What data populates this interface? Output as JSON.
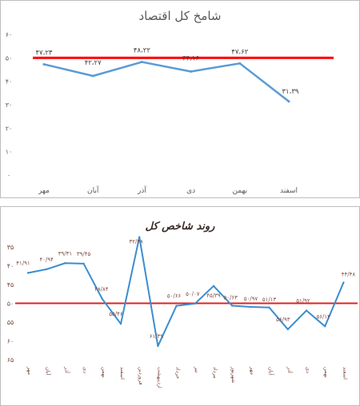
{
  "chart_data": [
    {
      "type": "line",
      "title": "شامخ کل اقتصاد",
      "categories": [
        "مهر",
        "آبان",
        "آذر",
        "دی",
        "بهمن",
        "اسفند"
      ],
      "series": [
        {
          "values": [
            47.23,
            42.27,
            48.22,
            44.16,
            47.62,
            31.39
          ],
          "labels": [
            "۴۷،۲۳",
            "۴۲،۲۷",
            "۴۸،۲۲",
            "۴۴،۱۶",
            "۴۷،۶۲",
            "۳۱،۳۹"
          ],
          "color": "#5b9bd5"
        }
      ],
      "threshold": {
        "value": 50,
        "color": "#ff0000"
      },
      "ylim": [
        0,
        60
      ],
      "yticks": [
        0,
        10,
        20,
        30,
        40,
        50,
        60
      ],
      "yticklabels": [
        "۰",
        "۱۰",
        "۲۰",
        "۳۰",
        "۴۰",
        "۵۰",
        "۶۰"
      ],
      "grid": false,
      "xlabel": "",
      "ylabel": ""
    },
    {
      "type": "line",
      "title": "روند شاخص کل",
      "categories": [
        "مهر",
        "آبان",
        "آذر",
        "دی",
        "بهمن",
        "اسفند",
        "فروردین",
        "اردیبهشت",
        "خرداد",
        "تیر",
        "مرداد",
        "شهریور",
        "مهر",
        "آبان",
        "آذر",
        "دی",
        "بهمن",
        "اسفند"
      ],
      "series": [
        {
          "values": [
            41.91,
            40.94,
            39.31,
            39.45,
            48.84,
            55.46,
            32.38,
            61.39,
            50.66,
            50.07,
            45.39,
            50.63,
            50.97,
            51.13,
            56.93,
            51.92,
            56.13,
            44.48
          ],
          "labels": [
            "۴۱/۹۱",
            "۴۰/۹۴",
            "۳۹/۳۱",
            "۳۹/۴۵",
            "۴۸/۸۴",
            "۵۵/۴۶",
            "۳۲/۳۸",
            "۶۱/۳۹",
            "۵۰/۶۶",
            "۵۰/۰۷",
            "۴۵/۳۹",
            "۵۰/۶۳",
            "۵۰/۹۷",
            "۵۱/۱۳",
            "۵۶/۹۳",
            "۵۱/۹۲",
            "۵۶/۱۳",
            "۴۴/۴۸"
          ],
          "color": "#3c8dcf"
        }
      ],
      "threshold": {
        "value": 50,
        "color": "#e02020"
      },
      "ylim": [
        35,
        65
      ],
      "yticks": [
        35,
        40,
        45,
        50,
        55,
        60,
        65
      ],
      "yticklabels": [
        "۳۵",
        "۴۰",
        "۴۵",
        "۵۰",
        "۵۵",
        "۶۰",
        "۶۵"
      ],
      "grid": false,
      "xlabel": "",
      "ylabel": ""
    }
  ]
}
